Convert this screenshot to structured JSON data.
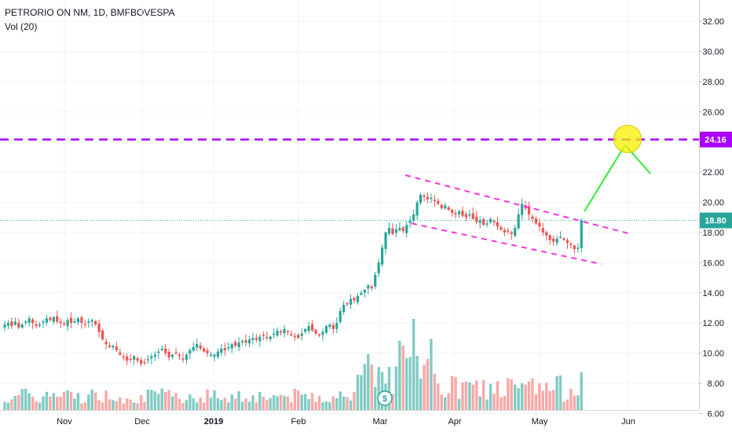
{
  "header": {
    "title": "PETRORIO ON NM, 1D, BMFBOVESPA",
    "volume_label": "Vol (20)"
  },
  "chart_data": {
    "type": "candlestick",
    "symbol": "PETRORIO ON NM",
    "interval": "1D",
    "exchange": "BMFBOVESPA",
    "y_axis": {
      "ticks": [
        "6.00",
        "8.00",
        "10.00",
        "12.00",
        "14.00",
        "16.00",
        "18.00",
        "20.00",
        "22.00",
        "24.00",
        "26.00",
        "28.00",
        "30.00",
        "32.00"
      ],
      "ylim": [
        5.4,
        33.2
      ]
    },
    "x_axis": {
      "ticks": [
        {
          "label": "Nov",
          "bold": false
        },
        {
          "label": "Dec",
          "bold": false
        },
        {
          "label": "2019",
          "bold": true
        },
        {
          "label": "Feb",
          "bold": false
        },
        {
          "label": "Mar",
          "bold": false
        },
        {
          "label": "Apr",
          "bold": false
        },
        {
          "label": "May",
          "bold": false
        },
        {
          "label": "Jun",
          "bold": false
        }
      ]
    },
    "last_price": "18.80",
    "target_level": "24.16",
    "close_series": [
      11.9,
      12.0,
      11.8,
      12.1,
      11.7,
      11.9,
      12.1,
      12.3,
      12.0,
      11.8,
      11.9,
      12.1,
      12.3,
      12.2,
      12.4,
      12.1,
      12.0,
      11.9,
      12.2,
      12.0,
      12.1,
      12.3,
      12.0,
      11.9,
      12.1,
      12.2,
      11.9,
      11.4,
      10.9,
      10.6,
      10.4,
      10.5,
      10.2,
      9.9,
      9.7,
      9.5,
      9.6,
      9.8,
      9.5,
      9.3,
      9.4,
      9.6,
      9.8,
      9.9,
      10.1,
      10.3,
      10.0,
      9.7,
      9.9,
      10.0,
      9.8,
      9.6,
      9.9,
      10.2,
      10.4,
      10.6,
      10.3,
      10.1,
      10.0,
      9.9,
      9.9,
      10.1,
      10.3,
      10.2,
      10.4,
      10.6,
      10.5,
      10.7,
      10.8,
      10.7,
      10.9,
      11.0,
      10.9,
      11.1,
      11.2,
      11.0,
      11.1,
      11.3,
      11.5,
      11.4,
      11.6,
      11.4,
      11.2,
      11.1,
      11.0,
      11.3,
      11.6,
      11.8,
      11.5,
      11.3,
      11.2,
      11.4,
      11.8,
      11.9,
      11.6,
      12.0,
      12.8,
      13.2,
      13.3,
      13.6,
      13.5,
      13.8,
      14.0,
      14.2,
      14.5,
      14.3,
      15.2,
      16.0,
      17.0,
      18.0,
      18.3,
      17.9,
      18.2,
      18.3,
      18.1,
      18.5,
      18.8,
      19.2,
      20.0,
      20.5,
      20.4,
      20.2,
      20.3,
      20.1,
      19.9,
      19.6,
      19.8,
      19.5,
      19.3,
      19.2,
      19.4,
      19.1,
      19.0,
      19.2,
      18.9,
      18.7,
      18.8,
      18.5,
      18.6,
      18.9,
      18.7,
      18.4,
      18.2,
      18.0,
      18.1,
      17.9,
      18.3,
      19.2,
      19.9,
      19.6,
      19.2,
      18.9,
      18.6,
      18.4,
      18.0,
      17.8,
      17.5,
      17.4,
      17.6,
      17.7,
      17.5,
      17.3,
      17.2,
      16.9,
      17.0,
      18.8
    ],
    "annotations": {
      "channel": "descending",
      "horizontal_level": "24.16",
      "projection": "breakout-to-target",
      "currency_badge": "$"
    },
    "colors": {
      "up": "#26a69a",
      "down": "#ef5350",
      "up_vol": "#80cbc4",
      "down_vol": "#f7a9a7",
      "target_line": "#aa00ff",
      "channel_line": "#ff33dd",
      "projection_line": "#33ee33",
      "highlight_circle": "#f5f000",
      "price_line": "#26a69a"
    }
  }
}
